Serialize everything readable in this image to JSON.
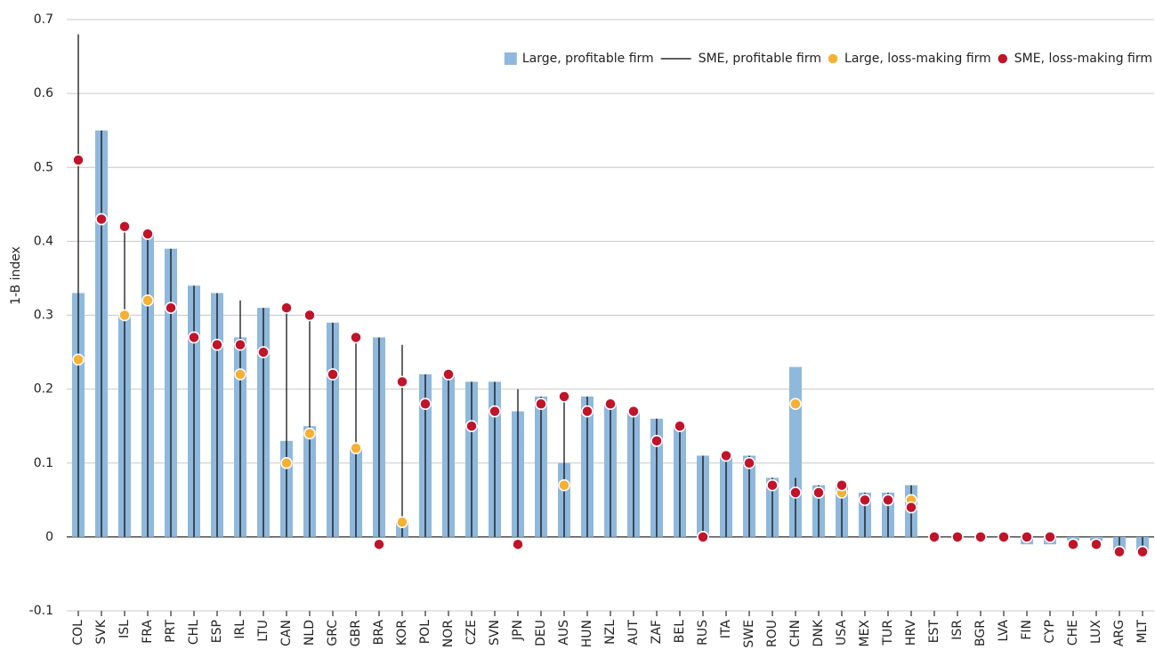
{
  "chart_data": {
    "type": "bar",
    "ylabel": "1-B index",
    "categories": [
      "COL",
      "SVK",
      "ISL",
      "FRA",
      "PRT",
      "CHL",
      "ESP",
      "IRL",
      "LTU",
      "CAN",
      "NLD",
      "GRC",
      "GBR",
      "BRA",
      "KOR",
      "POL",
      "NOR",
      "CZE",
      "SVN",
      "JPN",
      "DEU",
      "AUS",
      "HUN",
      "NZL",
      "AUT",
      "ZAF",
      "BEL",
      "RUS",
      "ITA",
      "SWE",
      "ROU",
      "CHN",
      "DNK",
      "USA",
      "MEX",
      "TUR",
      "HRV",
      "EST",
      "ISR",
      "BGR",
      "LVA",
      "FIN",
      "CYP",
      "CHE",
      "LUX",
      "ARG",
      "MLT"
    ],
    "series": [
      {
        "name": "Large, profitable firm",
        "style": "bar",
        "color": "#8fb8dc",
        "values": [
          0.33,
          0.55,
          0.3,
          0.41,
          0.39,
          0.34,
          0.33,
          0.27,
          0.31,
          0.13,
          0.15,
          0.29,
          0.12,
          0.27,
          0.02,
          0.22,
          0.22,
          0.21,
          0.21,
          0.17,
          0.19,
          0.1,
          0.19,
          0.18,
          0.17,
          0.16,
          0.15,
          0.11,
          0.11,
          0.11,
          0.08,
          0.23,
          0.07,
          0.07,
          0.06,
          0.06,
          0.07,
          0,
          0,
          0,
          0,
          -0.01,
          -0.01,
          -0.005,
          -0.005,
          -0.02,
          -0.02
        ]
      },
      {
        "name": "SME, profitable firm",
        "style": "stem",
        "color": "#000000",
        "values": [
          0.68,
          0.55,
          0.42,
          0.41,
          0.39,
          0.34,
          0.33,
          0.32,
          0.31,
          0.31,
          0.3,
          0.29,
          0.27,
          0.27,
          0.26,
          0.22,
          0.22,
          0.21,
          0.21,
          0.2,
          0.19,
          0.19,
          0.19,
          0.18,
          0.17,
          0.16,
          0.15,
          0.11,
          0.11,
          0.11,
          0.08,
          0.08,
          0.07,
          0.07,
          0.06,
          0.06,
          0.07,
          0,
          0,
          0,
          0,
          0,
          0,
          0,
          0,
          -0.02,
          -0.02
        ]
      },
      {
        "name": "Large, loss-making firm",
        "style": "dot",
        "color": "#f5b133",
        "values": [
          0.24,
          0.43,
          0.3,
          0.32,
          0.31,
          0.27,
          0.26,
          0.22,
          0.25,
          0.1,
          0.14,
          0.22,
          0.12,
          -0.01,
          0.02,
          0.18,
          0.22,
          0.15,
          0.17,
          -0.01,
          0.18,
          0.07,
          0.17,
          0.18,
          0.17,
          0.13,
          0.15,
          0,
          0.11,
          0.1,
          0.07,
          0.18,
          0.06,
          0.06,
          0.05,
          0.05,
          0.05,
          0,
          0,
          0,
          0,
          0,
          0,
          -0.01,
          -0.01,
          -0.02,
          -0.02
        ]
      },
      {
        "name": "SME, loss-making firm",
        "style": "dot",
        "color": "#c0142a",
        "values": [
          0.51,
          0.43,
          0.42,
          0.41,
          0.31,
          0.27,
          0.26,
          0.26,
          0.25,
          0.31,
          0.3,
          0.22,
          0.27,
          -0.01,
          0.21,
          0.18,
          0.22,
          0.15,
          0.17,
          -0.01,
          0.18,
          0.19,
          0.17,
          0.18,
          0.17,
          0.13,
          0.15,
          0,
          0.11,
          0.1,
          0.07,
          0.06,
          0.06,
          0.07,
          0.05,
          0.05,
          0.04,
          0,
          0,
          0,
          0,
          0,
          0,
          -0.01,
          -0.01,
          -0.02,
          -0.02
        ]
      }
    ],
    "ylim": [
      -0.1,
      0.7
    ],
    "yticks": [
      -0.1,
      0,
      0.1,
      0.2,
      0.3,
      0.4,
      0.5,
      0.6,
      0.7
    ],
    "grid": true,
    "legend": "upper right"
  }
}
